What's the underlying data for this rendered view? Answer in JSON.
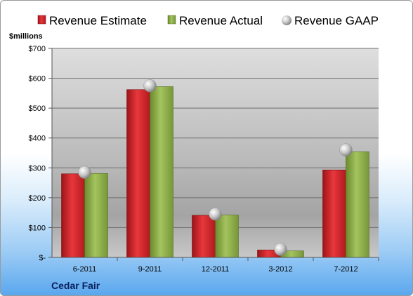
{
  "chart_data": {
    "type": "bar",
    "categories": [
      "6-2011",
      "9-2011",
      "12-2011",
      "3-2012",
      "7-2012"
    ],
    "series": [
      {
        "name": "Revenue Estimate",
        "values": [
          280,
          562,
          141,
          25,
          293
        ],
        "color": "#d4242a"
      },
      {
        "name": "Revenue Actual",
        "values": [
          281,
          572,
          142,
          22,
          354
        ],
        "color": "#8fb04a"
      },
      {
        "name": "Revenue GAAP",
        "values": [
          285,
          575,
          145,
          27,
          360
        ],
        "color": "#c9c9c9",
        "marker": "sphere"
      }
    ],
    "ylabel": "$millions",
    "ylim": [
      0,
      700
    ],
    "yticks": [
      0,
      100,
      200,
      300,
      400,
      500,
      600,
      700
    ],
    "ytick_labels": [
      "$-",
      "$100",
      "$200",
      "$300",
      "$400",
      "$500",
      "$600",
      "$700"
    ],
    "grid": true,
    "legend_position": "top",
    "footer": "Cedar Fair"
  }
}
